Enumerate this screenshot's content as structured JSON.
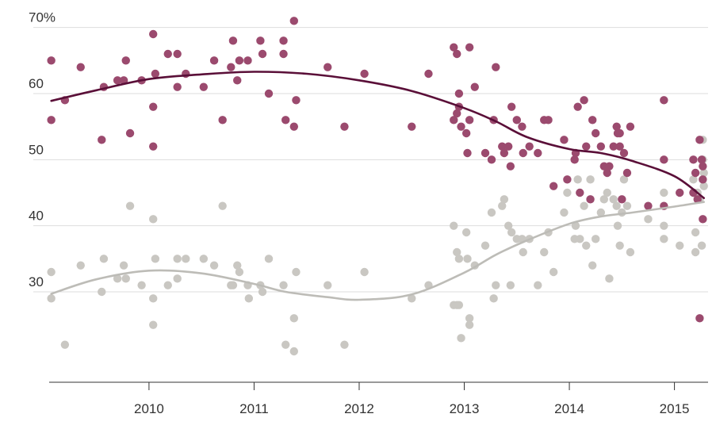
{
  "chart_data": {
    "type": "scatter",
    "title": "",
    "xlabel": "",
    "ylabel": "",
    "xlim": [
      2009.05,
      2015.32
    ],
    "ylim": [
      18,
      72
    ],
    "y_ticks": [
      30,
      40,
      50,
      60,
      70
    ],
    "y_tick_labels": [
      "30",
      "40",
      "50",
      "60",
      "70%"
    ],
    "x_ticks": [
      2010,
      2011,
      2012,
      2013,
      2014,
      2015
    ],
    "x_tick_labels": [
      "2010",
      "2011",
      "2012",
      "2013",
      "2014",
      "2015"
    ],
    "grid": true,
    "colors": {
      "series_a_points": "#9b4a6e",
      "series_a_trend": "#5a0f38",
      "series_b_points": "#c9c7c2",
      "series_b_trend": "#bdbcb7",
      "grid": "#dddddd",
      "axis": "#333333"
    },
    "series": [
      {
        "name": "series_a",
        "points": [
          [
            2009.07,
            65
          ],
          [
            2009.07,
            56
          ],
          [
            2009.2,
            59
          ],
          [
            2009.35,
            64
          ],
          [
            2009.55,
            53
          ],
          [
            2009.57,
            61
          ],
          [
            2009.7,
            62
          ],
          [
            2009.76,
            62
          ],
          [
            2009.78,
            65
          ],
          [
            2009.82,
            54
          ],
          [
            2009.93,
            62
          ],
          [
            2010.04,
            69
          ],
          [
            2010.04,
            58
          ],
          [
            2010.04,
            52
          ],
          [
            2010.06,
            63
          ],
          [
            2010.18,
            66
          ],
          [
            2010.27,
            66
          ],
          [
            2010.27,
            61
          ],
          [
            2010.35,
            63
          ],
          [
            2010.52,
            61
          ],
          [
            2010.62,
            65
          ],
          [
            2010.7,
            56
          ],
          [
            2010.78,
            64
          ],
          [
            2010.8,
            68
          ],
          [
            2010.84,
            62
          ],
          [
            2010.86,
            65
          ],
          [
            2010.94,
            65
          ],
          [
            2011.06,
            68
          ],
          [
            2011.08,
            66
          ],
          [
            2011.14,
            60
          ],
          [
            2011.28,
            68
          ],
          [
            2011.28,
            66
          ],
          [
            2011.3,
            56
          ],
          [
            2011.38,
            71
          ],
          [
            2011.38,
            55
          ],
          [
            2011.4,
            59
          ],
          [
            2011.7,
            64
          ],
          [
            2011.86,
            55
          ],
          [
            2012.05,
            63
          ],
          [
            2012.5,
            55
          ],
          [
            2012.66,
            63
          ],
          [
            2012.9,
            67
          ],
          [
            2012.9,
            56
          ],
          [
            2012.93,
            66
          ],
          [
            2012.93,
            57
          ],
          [
            2012.95,
            60
          ],
          [
            2012.95,
            58
          ],
          [
            2012.97,
            55
          ],
          [
            2013.02,
            54
          ],
          [
            2013.03,
            51
          ],
          [
            2013.05,
            56
          ],
          [
            2013.05,
            67
          ],
          [
            2013.1,
            61
          ],
          [
            2013.2,
            51
          ],
          [
            2013.26,
            50
          ],
          [
            2013.28,
            56
          ],
          [
            2013.3,
            64
          ],
          [
            2013.36,
            52
          ],
          [
            2013.38,
            51
          ],
          [
            2013.42,
            52
          ],
          [
            2013.44,
            49
          ],
          [
            2013.45,
            58
          ],
          [
            2013.5,
            56
          ],
          [
            2013.55,
            55
          ],
          [
            2013.56,
            51
          ],
          [
            2013.62,
            52
          ],
          [
            2013.7,
            51
          ],
          [
            2013.76,
            56
          ],
          [
            2013.8,
            56
          ],
          [
            2013.85,
            46
          ],
          [
            2013.95,
            53
          ],
          [
            2013.98,
            47
          ],
          [
            2014.05,
            50
          ],
          [
            2014.06,
            51
          ],
          [
            2014.08,
            58
          ],
          [
            2014.1,
            45
          ],
          [
            2014.14,
            59
          ],
          [
            2014.16,
            52
          ],
          [
            2014.2,
            44
          ],
          [
            2014.22,
            56
          ],
          [
            2014.25,
            54
          ],
          [
            2014.3,
            52
          ],
          [
            2014.33,
            49
          ],
          [
            2014.36,
            48
          ],
          [
            2014.38,
            49
          ],
          [
            2014.42,
            52
          ],
          [
            2014.45,
            55
          ],
          [
            2014.46,
            54
          ],
          [
            2014.48,
            52
          ],
          [
            2014.48,
            54
          ],
          [
            2014.5,
            44
          ],
          [
            2014.52,
            51
          ],
          [
            2014.55,
            48
          ],
          [
            2014.58,
            55
          ],
          [
            2014.75,
            43
          ],
          [
            2014.9,
            59
          ],
          [
            2014.9,
            50
          ],
          [
            2014.9,
            43
          ],
          [
            2015.05,
            45
          ],
          [
            2015.18,
            45
          ],
          [
            2015.18,
            50
          ],
          [
            2015.2,
            48
          ],
          [
            2015.22,
            44
          ],
          [
            2015.24,
            53
          ],
          [
            2015.26,
            50
          ],
          [
            2015.27,
            47
          ],
          [
            2015.27,
            49
          ],
          [
            2015.27,
            41
          ],
          [
            2015.24,
            26
          ]
        ],
        "trend": [
          [
            2009.07,
            58.9
          ],
          [
            2009.5,
            60.5
          ],
          [
            2010.0,
            62.2
          ],
          [
            2010.5,
            62.9
          ],
          [
            2011.0,
            63.3
          ],
          [
            2011.5,
            63.0
          ],
          [
            2012.0,
            62.0
          ],
          [
            2012.5,
            60.4
          ],
          [
            2013.0,
            57.8
          ],
          [
            2013.3,
            55.8
          ],
          [
            2013.6,
            53.4
          ],
          [
            2014.0,
            51.6
          ],
          [
            2014.3,
            51.0
          ],
          [
            2014.6,
            49.8
          ],
          [
            2015.0,
            47.5
          ],
          [
            2015.28,
            44.2
          ]
        ]
      },
      {
        "name": "series_b",
        "points": [
          [
            2009.07,
            33
          ],
          [
            2009.07,
            29
          ],
          [
            2009.2,
            22
          ],
          [
            2009.35,
            34
          ],
          [
            2009.55,
            30
          ],
          [
            2009.57,
            35
          ],
          [
            2009.7,
            32
          ],
          [
            2009.76,
            34
          ],
          [
            2009.78,
            32
          ],
          [
            2009.82,
            43
          ],
          [
            2009.93,
            31
          ],
          [
            2010.04,
            41
          ],
          [
            2010.04,
            29
          ],
          [
            2010.04,
            25
          ],
          [
            2010.06,
            35
          ],
          [
            2010.18,
            31
          ],
          [
            2010.27,
            35
          ],
          [
            2010.27,
            32
          ],
          [
            2010.35,
            35
          ],
          [
            2010.52,
            35
          ],
          [
            2010.62,
            34
          ],
          [
            2010.7,
            43
          ],
          [
            2010.78,
            31
          ],
          [
            2010.8,
            31
          ],
          [
            2010.84,
            34
          ],
          [
            2010.86,
            33
          ],
          [
            2010.94,
            31
          ],
          [
            2010.95,
            29
          ],
          [
            2011.06,
            31
          ],
          [
            2011.08,
            30
          ],
          [
            2011.14,
            35
          ],
          [
            2011.28,
            31
          ],
          [
            2011.3,
            22
          ],
          [
            2011.38,
            26
          ],
          [
            2011.38,
            21
          ],
          [
            2011.4,
            33
          ],
          [
            2011.7,
            31
          ],
          [
            2011.86,
            22
          ],
          [
            2012.05,
            33
          ],
          [
            2012.5,
            29
          ],
          [
            2012.66,
            31
          ],
          [
            2012.9,
            40
          ],
          [
            2012.9,
            28
          ],
          [
            2012.93,
            36
          ],
          [
            2012.93,
            28
          ],
          [
            2012.95,
            35
          ],
          [
            2012.95,
            28
          ],
          [
            2012.97,
            23
          ],
          [
            2013.02,
            39
          ],
          [
            2013.03,
            35
          ],
          [
            2013.05,
            25
          ],
          [
            2013.05,
            26
          ],
          [
            2013.1,
            34
          ],
          [
            2013.2,
            37
          ],
          [
            2013.26,
            42
          ],
          [
            2013.28,
            29
          ],
          [
            2013.3,
            31
          ],
          [
            2013.36,
            43
          ],
          [
            2013.38,
            44
          ],
          [
            2013.42,
            40
          ],
          [
            2013.44,
            31
          ],
          [
            2013.45,
            39
          ],
          [
            2013.5,
            38
          ],
          [
            2013.55,
            38
          ],
          [
            2013.56,
            36
          ],
          [
            2013.62,
            38
          ],
          [
            2013.7,
            31
          ],
          [
            2013.76,
            36
          ],
          [
            2013.8,
            39
          ],
          [
            2013.85,
            33
          ],
          [
            2013.95,
            42
          ],
          [
            2013.98,
            45
          ],
          [
            2014.05,
            38
          ],
          [
            2014.06,
            40
          ],
          [
            2014.08,
            47
          ],
          [
            2014.1,
            38
          ],
          [
            2014.14,
            43
          ],
          [
            2014.16,
            37
          ],
          [
            2014.2,
            47
          ],
          [
            2014.22,
            34
          ],
          [
            2014.25,
            38
          ],
          [
            2014.3,
            42
          ],
          [
            2014.33,
            44
          ],
          [
            2014.36,
            45
          ],
          [
            2014.38,
            32
          ],
          [
            2014.42,
            44
          ],
          [
            2014.45,
            43
          ],
          [
            2014.46,
            40
          ],
          [
            2014.48,
            37
          ],
          [
            2014.5,
            42
          ],
          [
            2014.52,
            47
          ],
          [
            2014.55,
            43
          ],
          [
            2014.58,
            36
          ],
          [
            2014.75,
            41
          ],
          [
            2014.9,
            45
          ],
          [
            2014.9,
            40
          ],
          [
            2014.9,
            38
          ],
          [
            2015.05,
            37
          ],
          [
            2015.18,
            47
          ],
          [
            2015.18,
            45
          ],
          [
            2015.2,
            39
          ],
          [
            2015.2,
            36
          ],
          [
            2015.22,
            45
          ],
          [
            2015.24,
            44
          ],
          [
            2015.26,
            37
          ],
          [
            2015.27,
            53
          ],
          [
            2015.27,
            50
          ],
          [
            2015.28,
            48
          ],
          [
            2015.28,
            46
          ]
        ],
        "trend": [
          [
            2009.07,
            29.7
          ],
          [
            2009.5,
            31.9
          ],
          [
            2010.0,
            33.2
          ],
          [
            2010.5,
            32.8
          ],
          [
            2011.0,
            31.2
          ],
          [
            2011.3,
            30.0
          ],
          [
            2011.7,
            29.2
          ],
          [
            2012.0,
            28.8
          ],
          [
            2012.5,
            29.6
          ],
          [
            2013.0,
            32.9
          ],
          [
            2013.3,
            35.6
          ],
          [
            2013.6,
            37.8
          ],
          [
            2014.0,
            40.3
          ],
          [
            2014.3,
            41.4
          ],
          [
            2014.6,
            42.0
          ],
          [
            2015.0,
            42.9
          ],
          [
            2015.28,
            43.6
          ]
        ]
      }
    ]
  }
}
